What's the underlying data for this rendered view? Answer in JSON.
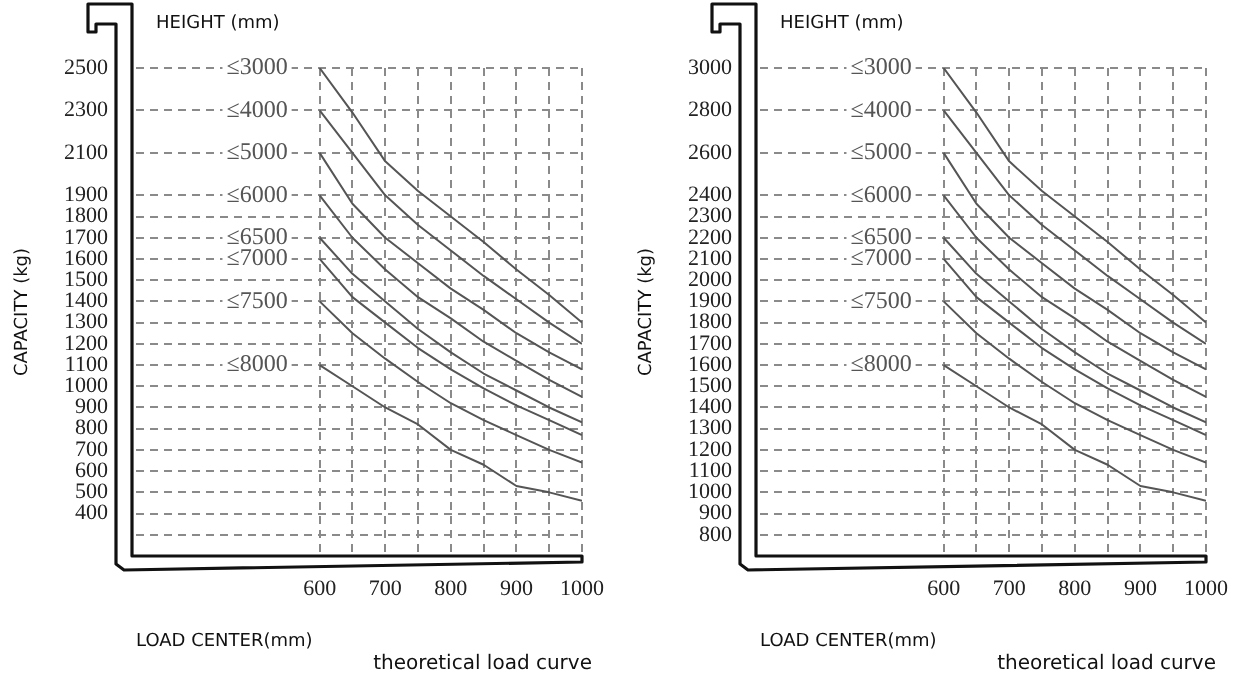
{
  "chart_data": [
    {
      "type": "line",
      "title": "theoretical load curve",
      "xlabel": "LOAD CENTER(mm)",
      "ylabel": "CAPACITY (kg)",
      "legend_title": "HEIGHT (mm)",
      "x": [
        600,
        650,
        700,
        750,
        800,
        850,
        900,
        950,
        1000
      ],
      "series": [
        {
          "name": "≤3000",
          "color": "#555555",
          "values": [
            2500,
            2290,
            2060,
            1920,
            1800,
            1680,
            1550,
            1430,
            1300
          ]
        },
        {
          "name": "≤4000",
          "color": "#555555",
          "values": [
            2300,
            2100,
            1900,
            1760,
            1640,
            1520,
            1410,
            1300,
            1200
          ]
        },
        {
          "name": "≤5000",
          "color": "#555555",
          "values": [
            2100,
            1860,
            1700,
            1580,
            1460,
            1360,
            1250,
            1160,
            1080
          ]
        },
        {
          "name": "≤6000",
          "color": "#555555",
          "values": [
            1900,
            1700,
            1550,
            1420,
            1320,
            1210,
            1120,
            1030,
            950
          ]
        },
        {
          "name": "≤6500",
          "color": "#555555",
          "values": [
            1700,
            1530,
            1400,
            1270,
            1160,
            1060,
            980,
            900,
            830
          ]
        },
        {
          "name": "≤7000",
          "color": "#555555",
          "values": [
            1600,
            1420,
            1300,
            1180,
            1080,
            990,
            910,
            840,
            770
          ]
        },
        {
          "name": "≤7500",
          "color": "#555555",
          "values": [
            1400,
            1250,
            1130,
            1020,
            920,
            840,
            770,
            700,
            640
          ]
        },
        {
          "name": "≤8000",
          "color": "#555555",
          "values": [
            1100,
            1000,
            900,
            820,
            700,
            630,
            530,
            500,
            460
          ]
        }
      ],
      "xlim": [
        320,
        1000
      ],
      "xticks": [
        600,
        {
          "value": 650,
          "label": null
        },
        700,
        {
          "value": 750,
          "label": null
        },
        800,
        {
          "value": 850,
          "label": null
        },
        900,
        {
          "value": 950,
          "label": null
        },
        1000
      ],
      "ylim": [
        200,
        2500
      ],
      "yticks": [
        {
          "value": 300,
          "label": null
        },
        400,
        500,
        600,
        700,
        800,
        900,
        1000,
        1100,
        1200,
        1300,
        1400,
        1500,
        1600,
        1700,
        1800,
        1900,
        2100,
        2300,
        2500
      ],
      "grid": true,
      "marker": "none",
      "line_style": "solid"
    },
    {
      "type": "line",
      "title": "theoretical load curve",
      "xlabel": "LOAD CENTER(mm)",
      "ylabel": "CAPACITY (kg)",
      "legend_title": "HEIGHT (mm)",
      "x": [
        600,
        650,
        700,
        750,
        800,
        850,
        900,
        950,
        1000
      ],
      "series": [
        {
          "name": "≤3000",
          "color": "#555555",
          "values": [
            3000,
            2790,
            2560,
            2420,
            2300,
            2180,
            2050,
            1930,
            1800
          ]
        },
        {
          "name": "≤4000",
          "color": "#555555",
          "values": [
            2800,
            2600,
            2400,
            2260,
            2140,
            2020,
            1910,
            1800,
            1700
          ]
        },
        {
          "name": "≤5000",
          "color": "#555555",
          "values": [
            2600,
            2360,
            2200,
            2080,
            1960,
            1860,
            1750,
            1660,
            1580
          ]
        },
        {
          "name": "≤6000",
          "color": "#555555",
          "values": [
            2400,
            2200,
            2050,
            1920,
            1820,
            1710,
            1620,
            1530,
            1450
          ]
        },
        {
          "name": "≤6500",
          "color": "#555555",
          "values": [
            2200,
            2030,
            1900,
            1770,
            1660,
            1560,
            1480,
            1400,
            1330
          ]
        },
        {
          "name": "≤7000",
          "color": "#555555",
          "values": [
            2100,
            1920,
            1800,
            1680,
            1580,
            1490,
            1410,
            1340,
            1270
          ]
        },
        {
          "name": "≤7500",
          "color": "#555555",
          "values": [
            1900,
            1750,
            1630,
            1520,
            1420,
            1340,
            1270,
            1200,
            1140
          ]
        },
        {
          "name": "≤8000",
          "color": "#555555",
          "values": [
            1600,
            1500,
            1400,
            1320,
            1200,
            1130,
            1030,
            1000,
            960
          ]
        }
      ],
      "xlim": [
        320,
        1000
      ],
      "xticks": [
        600,
        {
          "value": 650,
          "label": null
        },
        700,
        {
          "value": 750,
          "label": null
        },
        800,
        {
          "value": 850,
          "label": null
        },
        900,
        {
          "value": 950,
          "label": null
        },
        1000
      ],
      "ylim": [
        700,
        3000
      ],
      "yticks": [
        800,
        900,
        1000,
        1100,
        1200,
        1300,
        1400,
        1500,
        1600,
        1700,
        1800,
        1900,
        2000,
        2100,
        2200,
        2300,
        2400,
        2600,
        2800,
        3000
      ],
      "grid": true,
      "marker": "none",
      "line_style": "solid"
    }
  ]
}
